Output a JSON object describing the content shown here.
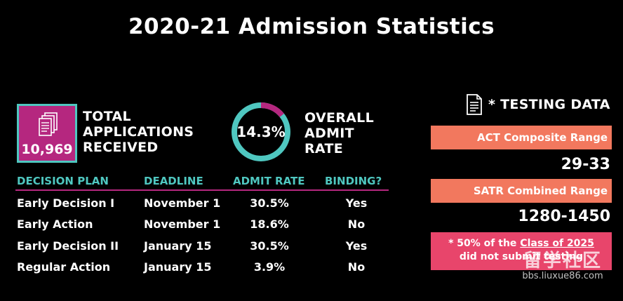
{
  "title": "2020-21 Admission Statistics",
  "applications": {
    "count": "10,969",
    "label_lines": [
      "TOTAL",
      "APPLICATIONS",
      "RECEIVED"
    ]
  },
  "admit": {
    "rate_text": "14.3%",
    "rate_fraction": 0.143,
    "label_lines": [
      "OVERALL",
      "ADMIT",
      "RATE"
    ]
  },
  "table": {
    "headers": [
      "DECISION PLAN",
      "DEADLINE",
      "ADMIT RATE",
      "BINDING?"
    ],
    "rows": [
      [
        "Early Decision I",
        "November 1",
        "30.5%",
        "Yes"
      ],
      [
        "Early Action",
        "November 1",
        "18.6%",
        "No"
      ],
      [
        "Early Decision II",
        "January 15",
        "30.5%",
        "Yes"
      ],
      [
        "Regular Action",
        "January 15",
        "3.9%",
        "No"
      ]
    ]
  },
  "testing": {
    "title": "* TESTING DATA",
    "act": {
      "label": "ACT Composite Range",
      "value": "29-33"
    },
    "sat": {
      "label": "SATR Combined Range",
      "value": "1280-1450"
    },
    "note": {
      "line1_prefix": "* 50% of the ",
      "line1_link": "Class of 2025",
      "line2": "did not submit testing"
    }
  },
  "watermark": {
    "cjk": "留学社区",
    "url": "bbs.liuxue86.com"
  },
  "colors": {
    "teal": "#4fc7c0",
    "magenta": "#b5277f",
    "salmon": "#f2785e",
    "pink": "#e8456b",
    "background": "#000000"
  }
}
